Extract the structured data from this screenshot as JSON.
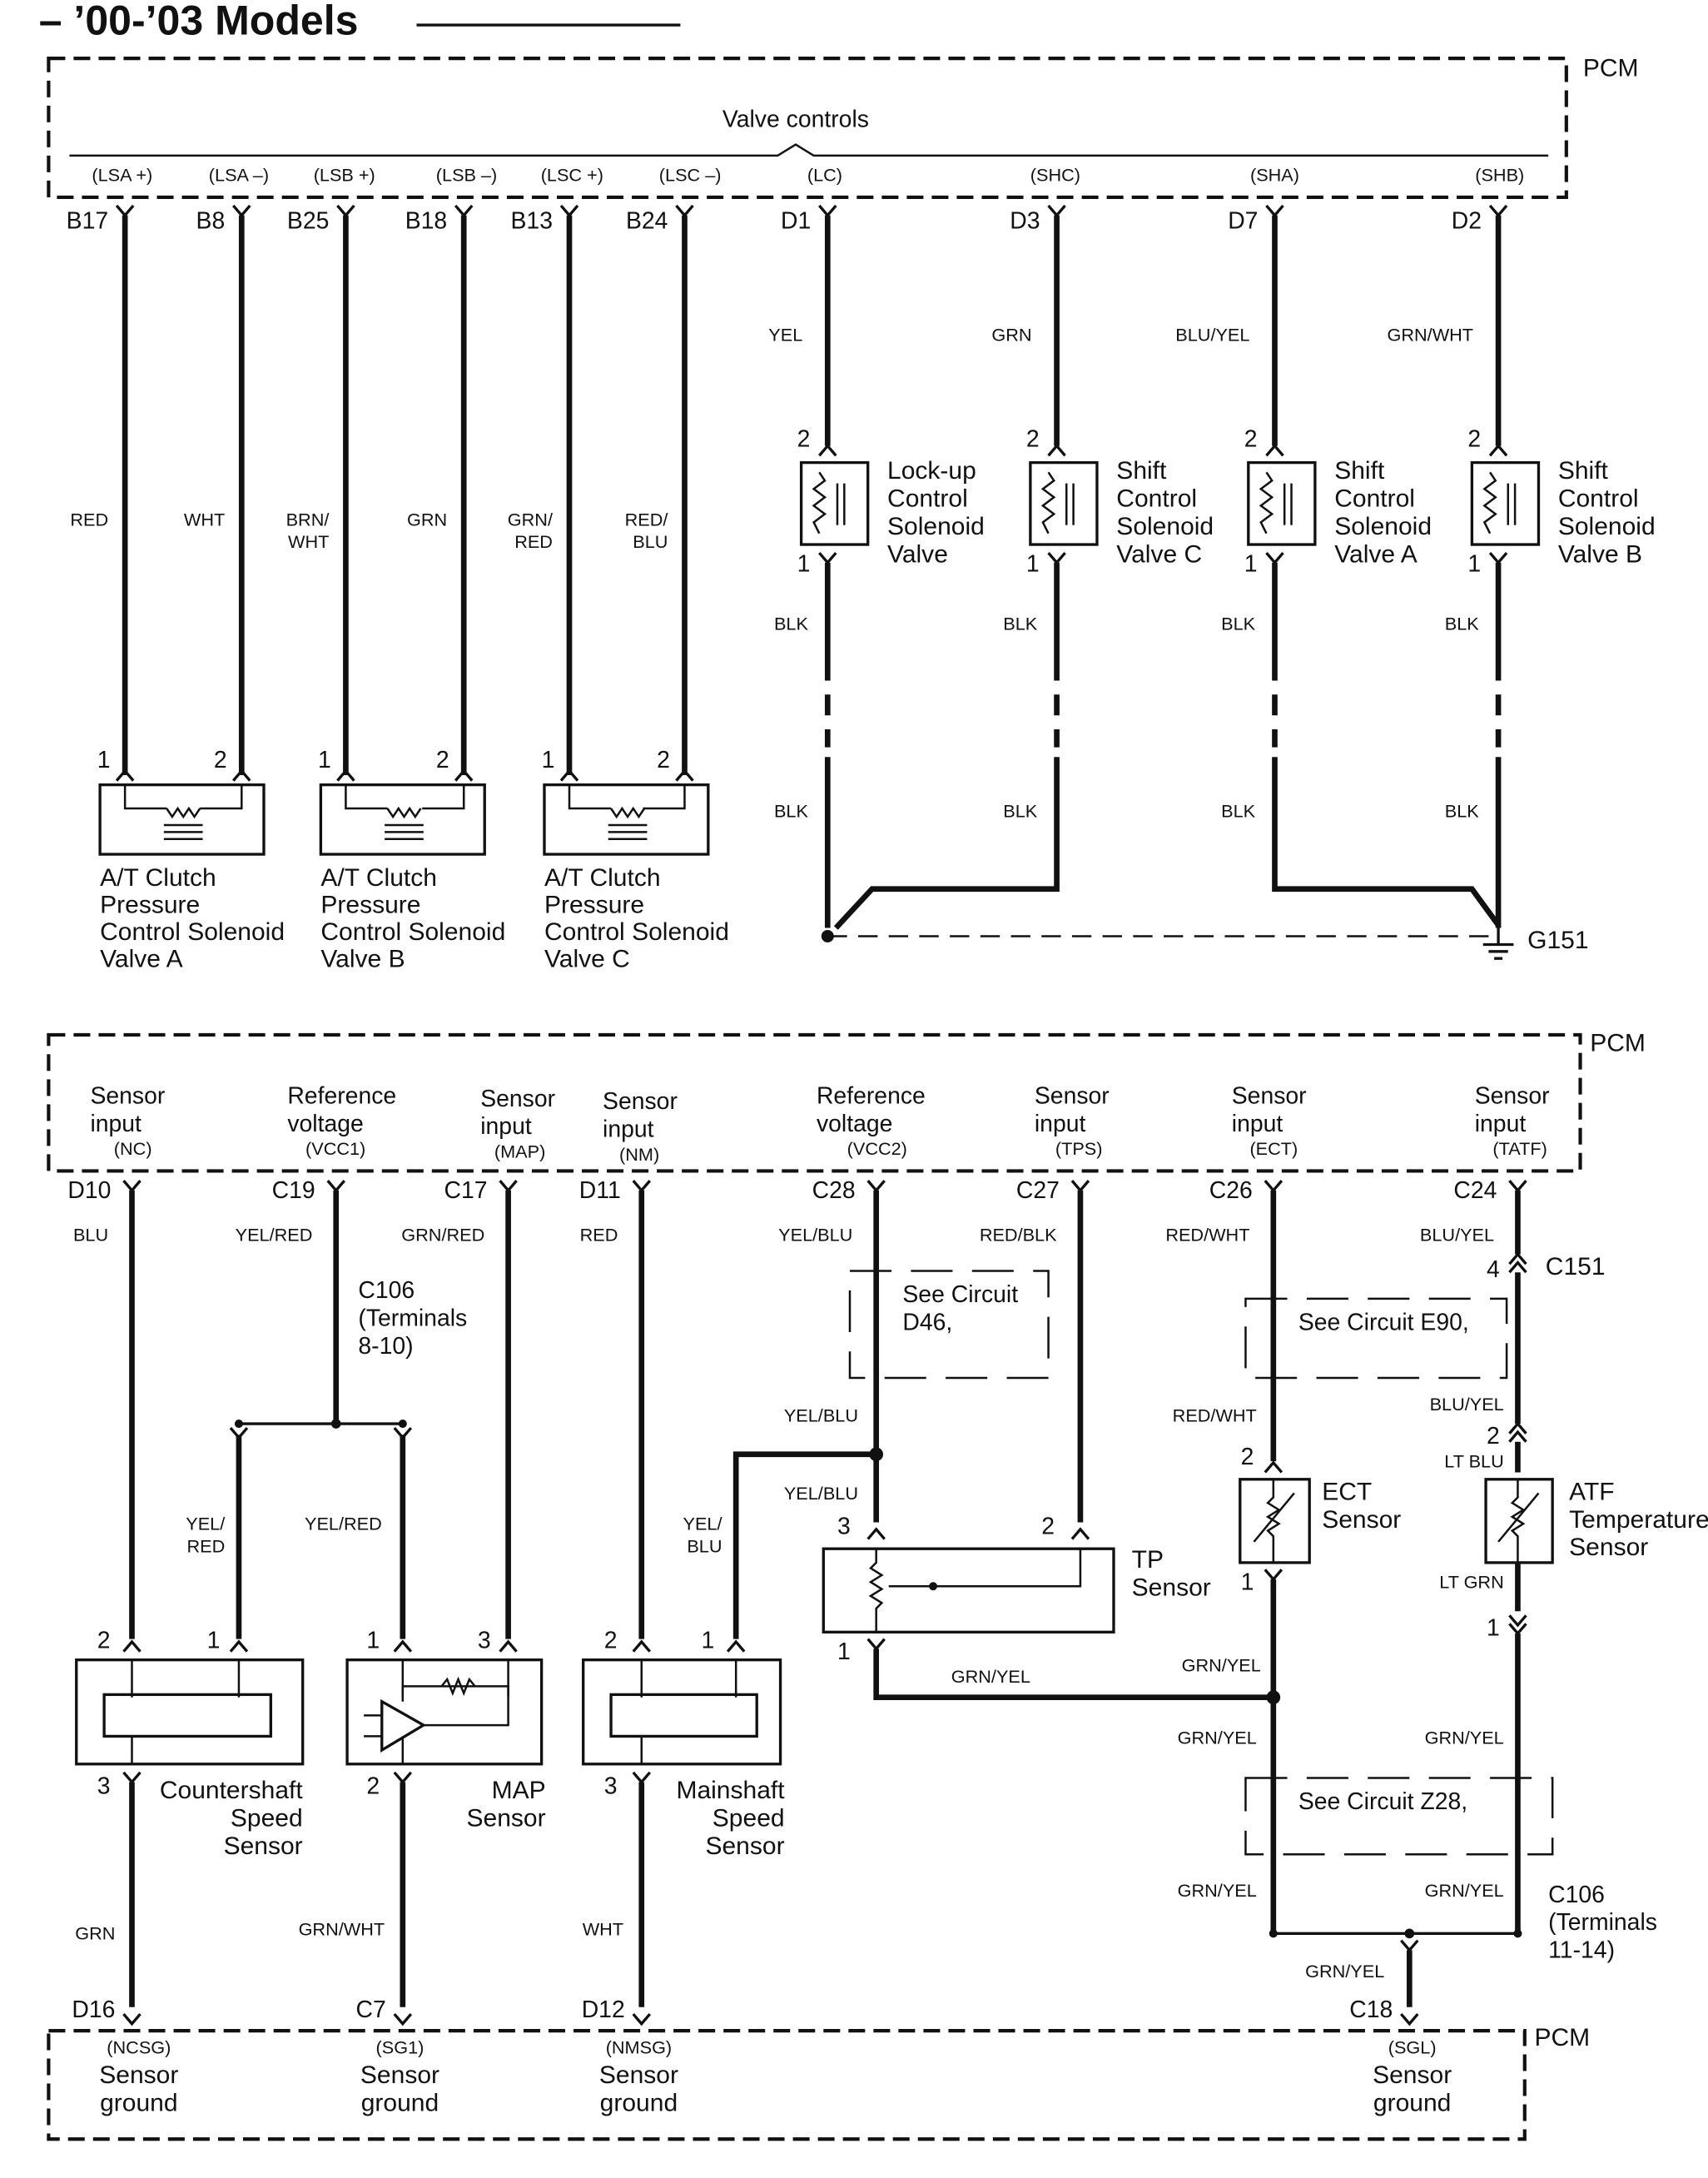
{
  "title": "– ’00-’03 Models",
  "top": {
    "pcm": "PCM",
    "group": "Valve controls",
    "terminals": [
      {
        "signal": "(LSA +)",
        "pin": "B17",
        "wire": [
          "RED"
        ]
      },
      {
        "signal": "(LSA –)",
        "pin": "B8",
        "wire": [
          "WHT"
        ]
      },
      {
        "signal": "(LSB +)",
        "pin": "B25",
        "wire": [
          "BRN/",
          "WHT"
        ]
      },
      {
        "signal": "(LSB –)",
        "pin": "B18",
        "wire": [
          "GRN"
        ]
      },
      {
        "signal": "(LSC +)",
        "pin": "B13",
        "wire": [
          "GRN/",
          "RED"
        ]
      },
      {
        "signal": "(LSC –)",
        "pin": "B24",
        "wire": [
          "RED/",
          "BLU"
        ]
      },
      {
        "signal": "(LC)",
        "pin": "D1",
        "wire": [
          "YEL"
        ]
      },
      {
        "signal": "(SHC)",
        "pin": "D3",
        "wire": [
          "GRN"
        ]
      },
      {
        "signal": "(SHA)",
        "pin": "D7",
        "wire": [
          "BLU/YEL"
        ]
      },
      {
        "signal": "(SHB)",
        "pin": "D2",
        "wire": [
          "GRN/WHT"
        ]
      }
    ],
    "clutch_valves": [
      {
        "pins": [
          "1",
          "2"
        ],
        "name": [
          "A/T Clutch",
          "Pressure",
          "Control Solenoid",
          "Valve A"
        ]
      },
      {
        "pins": [
          "1",
          "2"
        ],
        "name": [
          "A/T Clutch",
          "Pressure",
          "Control Solenoid",
          "Valve B"
        ]
      },
      {
        "pins": [
          "1",
          "2"
        ],
        "name": [
          "A/T Clutch",
          "Pressure",
          "Control Solenoid",
          "Valve C"
        ]
      }
    ],
    "shift_valves": [
      {
        "pins": [
          "2",
          "1"
        ],
        "name": [
          "Lock-up",
          "Control",
          "Solenoid",
          "Valve"
        ],
        "ground_wires": [
          "BLK",
          "BLK"
        ]
      },
      {
        "pins": [
          "2",
          "1"
        ],
        "name": [
          "Shift",
          "Control",
          "Solenoid",
          "Valve C"
        ],
        "ground_wires": [
          "BLK",
          "BLK"
        ]
      },
      {
        "pins": [
          "2",
          "1"
        ],
        "name": [
          "Shift",
          "Control",
          "Solenoid",
          "Valve A"
        ],
        "ground_wires": [
          "BLK",
          "BLK"
        ]
      },
      {
        "pins": [
          "2",
          "1"
        ],
        "name": [
          "Shift",
          "Control",
          "Solenoid",
          "Valve B"
        ],
        "ground_wires": [
          "BLK",
          "BLK"
        ]
      }
    ],
    "ground": "G151"
  },
  "bottom": {
    "pcm": "PCM",
    "inputs": [
      {
        "name": [
          "Sensor",
          "input"
        ],
        "signal": "(NC)",
        "pin": "D10",
        "wire": "BLU"
      },
      {
        "name": [
          "Reference",
          "voltage"
        ],
        "signal": "(VCC1)",
        "pin": "C19",
        "wire": "YEL/RED"
      },
      {
        "name": [
          "Sensor",
          "input"
        ],
        "signal": "(MAP)",
        "pin": "C17",
        "wire": "GRN/RED"
      },
      {
        "name": [
          "Sensor",
          "input"
        ],
        "signal": "(NM)",
        "pin": "D11",
        "wire": "RED"
      },
      {
        "name": [
          "Reference",
          "voltage"
        ],
        "signal": "(VCC2)",
        "pin": "C28",
        "wire": "YEL/BLU"
      },
      {
        "name": [
          "Sensor",
          "input"
        ],
        "signal": "(TPS)",
        "pin": "C27",
        "wire": "RED/BLK"
      },
      {
        "name": [
          "Sensor",
          "input"
        ],
        "signal": "(ECT)",
        "pin": "C26",
        "wire": "RED/WHT"
      },
      {
        "name": [
          "Sensor",
          "input"
        ],
        "signal": "(TATF)",
        "pin": "C24",
        "wire": "BLU/YEL"
      }
    ],
    "c106_upper": [
      "C106",
      "(Terminals",
      "8-10)"
    ],
    "vcc1_branches": [
      [
        "YEL/",
        "RED"
      ],
      [
        "YEL/RED"
      ]
    ],
    "countershaft": {
      "pins": [
        "2",
        "1",
        "3"
      ],
      "name": [
        "Countershaft",
        "Speed",
        "Sensor"
      ],
      "ground_wire": "GRN"
    },
    "map": {
      "pins": [
        "1",
        "3",
        "2"
      ],
      "name": [
        "MAP",
        "Sensor"
      ],
      "ground_wire": "GRN/WHT"
    },
    "mainshaft": {
      "pins": [
        "2",
        "1",
        "3"
      ],
      "name": [
        "Mainshaft",
        "Speed",
        "Sensor"
      ],
      "ground_wire": "WHT"
    },
    "vcc2": {
      "see": [
        "See Circuit",
        "D46,"
      ],
      "after": "YEL/BLU",
      "branch": [
        "YEL/",
        "BLU"
      ],
      "to_tp": "YEL/BLU"
    },
    "tp": {
      "pins": [
        "3",
        "2",
        "1"
      ],
      "name": [
        "TP",
        "Sensor"
      ],
      "ground_wire": "GRN/YEL"
    },
    "ect": {
      "see": "See Circuit E90,",
      "after": "RED/WHT",
      "pins": [
        "2",
        "1"
      ],
      "name": [
        "ECT",
        "Sensor"
      ],
      "wire_out": "GRN/YEL"
    },
    "atf": {
      "connector": "C151",
      "connector_pins": [
        "4",
        "2",
        "1"
      ],
      "after": "BLU/YEL",
      "in_wire": "LT BLU",
      "name": [
        "ATF",
        "Temperature",
        "Sensor"
      ],
      "out_wire": "LT GRN"
    },
    "z28": {
      "see": "See Circuit Z28,",
      "wires": [
        "GRN/YEL",
        "GRN/YEL",
        "GRN/YEL",
        "GRN/YEL"
      ]
    },
    "c106_lower": [
      "C106",
      "(Terminals",
      "11-14)"
    ],
    "sgl_wire": "GRN/YEL",
    "ground_pins": [
      "D16",
      "C7",
      "D12",
      "C18"
    ],
    "grounds": [
      {
        "signal": "(NCSG)",
        "name": [
          "Sensor",
          "ground"
        ]
      },
      {
        "signal": "(SG1)",
        "name": [
          "Sensor",
          "ground"
        ]
      },
      {
        "signal": "(NMSG)",
        "name": [
          "Sensor",
          "ground"
        ]
      },
      {
        "signal": "(SGL)",
        "name": [
          "Sensor",
          "ground"
        ]
      }
    ]
  }
}
